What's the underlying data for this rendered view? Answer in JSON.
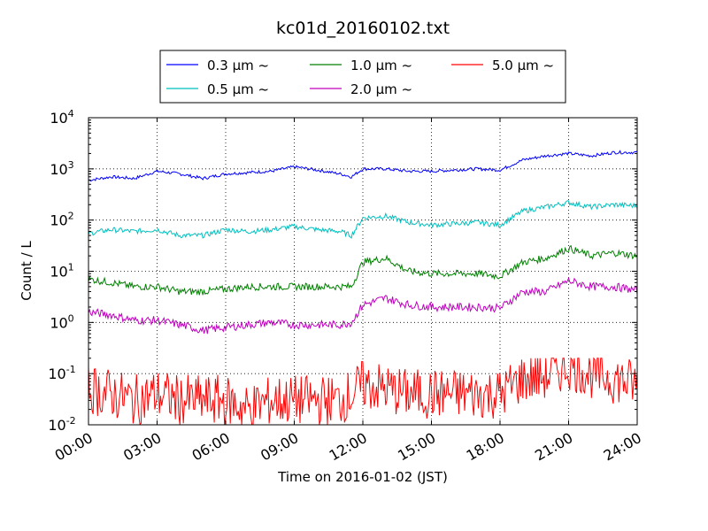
{
  "chart_data": {
    "type": "line",
    "title": "kc01d_20160102.txt",
    "xlabel": "Time on 2016-01-02 (JST)",
    "ylabel": "Count / L",
    "yscale": "log",
    "ylim": [
      0.01,
      10000
    ],
    "xlim": [
      "00:00",
      "24:00"
    ],
    "x_tick_labels": [
      "00:00",
      "03:00",
      "06:00",
      "09:00",
      "12:00",
      "15:00",
      "18:00",
      "21:00",
      "24:00"
    ],
    "y_ticks": [
      {
        "base": "10",
        "exp": "-2"
      },
      {
        "base": "10",
        "exp": "-1"
      },
      {
        "base": "10",
        "exp": "0"
      },
      {
        "base": "10",
        "exp": "1"
      },
      {
        "base": "10",
        "exp": "2"
      },
      {
        "base": "10",
        "exp": "3"
      },
      {
        "base": "10",
        "exp": "4"
      }
    ],
    "grid": true,
    "legend_position": "top, outside plot",
    "x": [
      "00:00",
      "01:00",
      "02:00",
      "03:00",
      "04:00",
      "05:00",
      "06:00",
      "07:00",
      "08:00",
      "09:00",
      "10:00",
      "11:00",
      "11:30",
      "12:00",
      "13:00",
      "14:00",
      "15:00",
      "16:00",
      "17:00",
      "18:00",
      "19:00",
      "20:00",
      "21:00",
      "22:00",
      "23:00",
      "24:00"
    ],
    "series": [
      {
        "name": "0.3 μm ~",
        "color": "#0000ff",
        "values": [
          600,
          700,
          650,
          900,
          800,
          650,
          800,
          850,
          900,
          1100,
          950,
          800,
          700,
          1000,
          1000,
          900,
          900,
          950,
          1000,
          950,
          1500,
          1800,
          2000,
          1800,
          2100,
          2100
        ]
      },
      {
        "name": "0.5 μm ~",
        "color": "#00bfbf",
        "values": [
          55,
          65,
          60,
          65,
          50,
          50,
          65,
          60,
          65,
          75,
          65,
          60,
          50,
          110,
          120,
          90,
          80,
          85,
          90,
          80,
          150,
          180,
          220,
          180,
          200,
          190
        ]
      },
      {
        "name": "1.0 μm ~",
        "color": "#008000",
        "values": [
          7,
          6,
          5,
          5,
          4,
          4,
          4.5,
          5,
          5,
          5,
          5,
          5,
          5,
          15,
          18,
          10,
          9,
          9,
          9,
          8,
          15,
          18,
          28,
          20,
          23,
          20
        ]
      },
      {
        "name": "2.0 μm ~",
        "color": "#bf00bf",
        "values": [
          1.6,
          1.4,
          1.1,
          1.1,
          0.9,
          0.7,
          0.8,
          0.9,
          1.0,
          0.9,
          0.9,
          0.9,
          1.0,
          2.2,
          3.0,
          2.2,
          2.0,
          2.0,
          2.0,
          1.9,
          4.0,
          4.0,
          6.5,
          5.0,
          5.0,
          4.2
        ]
      },
      {
        "name": "5.0 μm ~",
        "color": "#ff0000",
        "values": [
          0.05,
          0.04,
          0.03,
          0.04,
          0.03,
          0.03,
          0.03,
          0.02,
          0.03,
          0.03,
          0.03,
          0.03,
          0.04,
          0.06,
          0.05,
          0.04,
          0.04,
          0.04,
          0.04,
          0.04,
          0.08,
          0.09,
          0.15,
          0.1,
          0.08,
          0.06
        ]
      }
    ]
  }
}
